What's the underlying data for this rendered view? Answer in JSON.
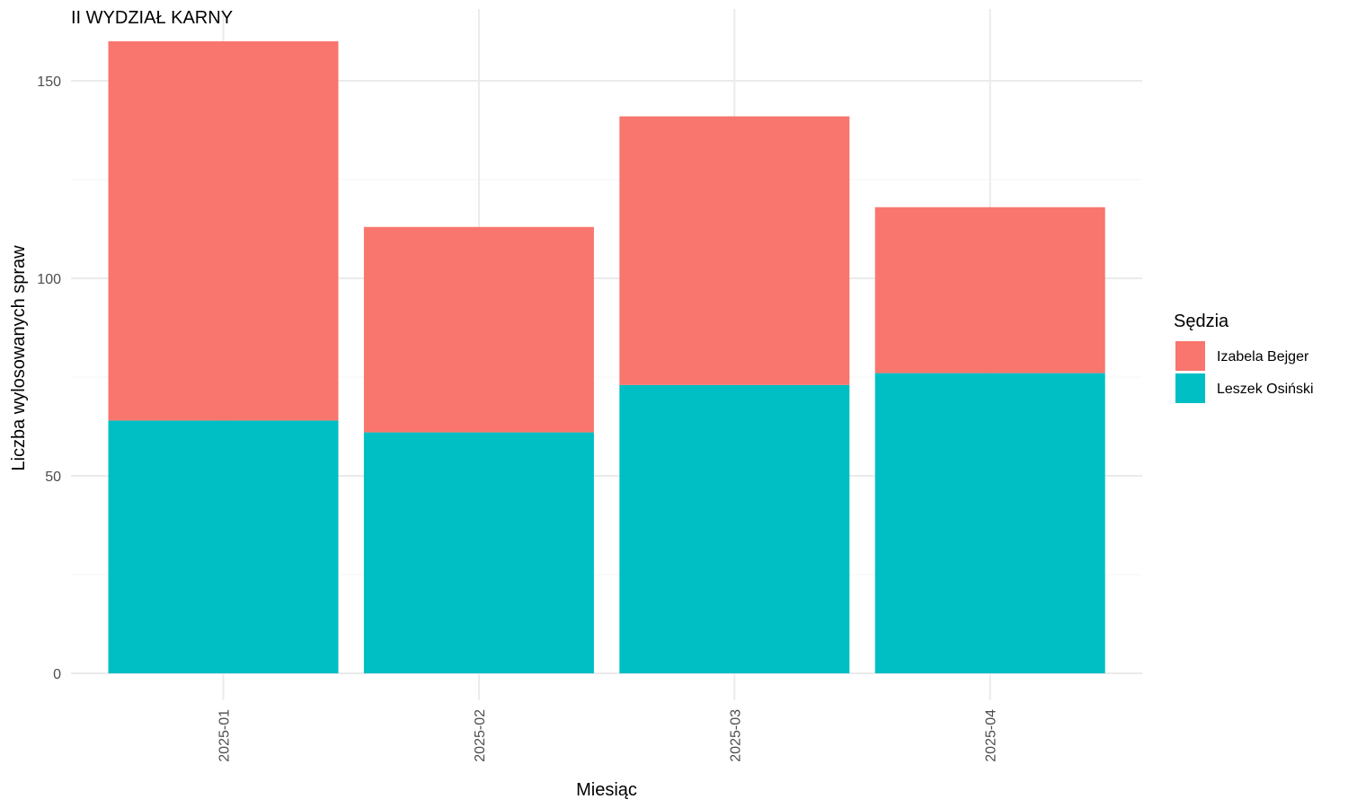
{
  "chart_data": {
    "type": "bar",
    "stacked": true,
    "title": "II WYDZIAŁ KARNY",
    "xlabel": "Miesiąc",
    "ylabel": "Liczba wylosowanych spraw",
    "categories": [
      "2025-01",
      "2025-02",
      "2025-03",
      "2025-04"
    ],
    "series": [
      {
        "name": "Leszek Osiński",
        "values": [
          64,
          61,
          73,
          76
        ],
        "color": "#00BFC4"
      },
      {
        "name": "Izabela Bejger",
        "values": [
          96,
          52,
          68,
          42
        ],
        "color": "#F8766D"
      }
    ],
    "ylim": [
      0,
      160
    ],
    "yticks": [
      0,
      50,
      100,
      150
    ],
    "grid": true,
    "legend": {
      "title": "Sędzia",
      "placement": "right",
      "entries": [
        "Izabela Bejger",
        "Leszek Osiński"
      ]
    }
  }
}
